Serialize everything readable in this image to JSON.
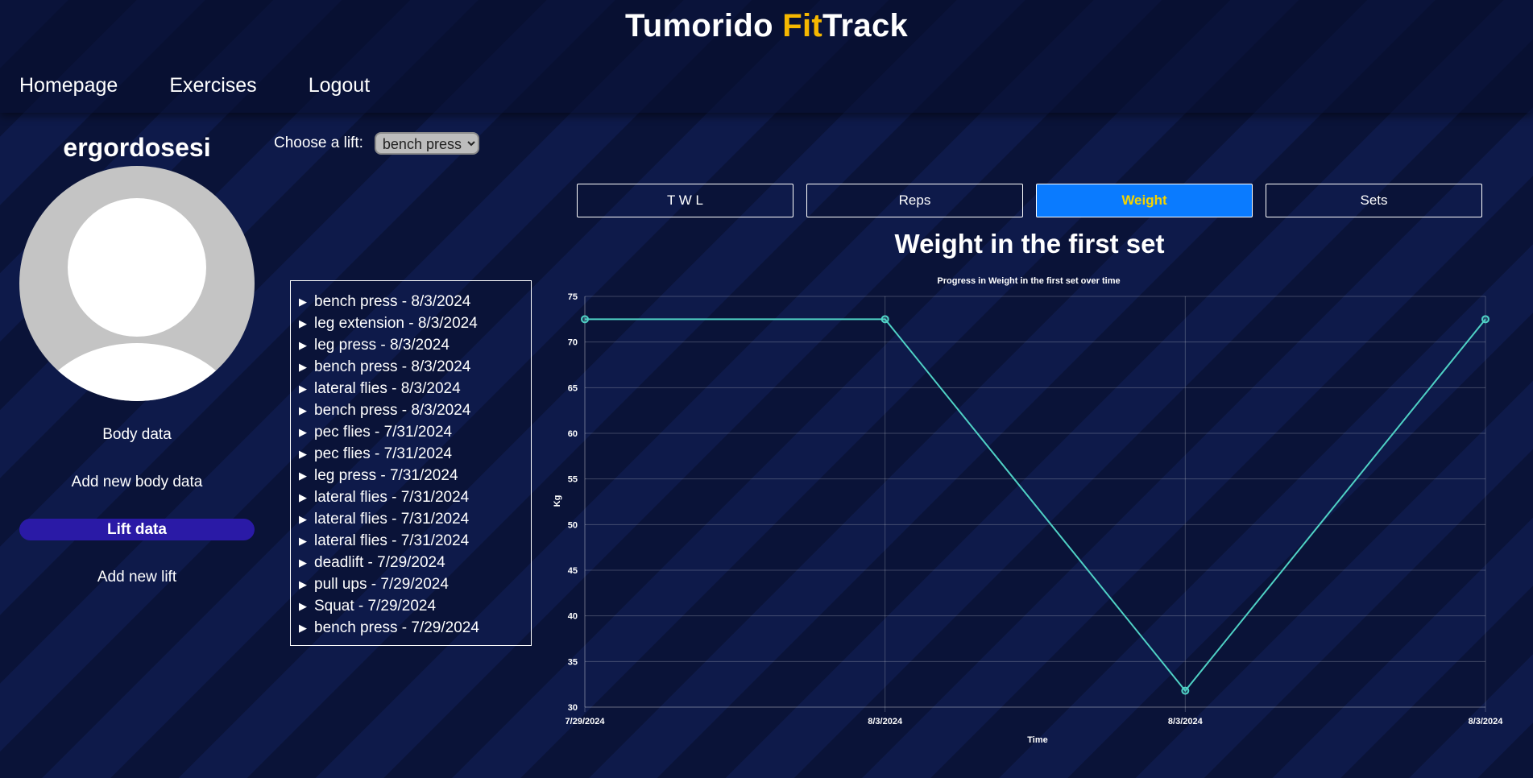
{
  "header": {
    "title_part1": "Tumorido ",
    "title_accent": "Fit",
    "title_part2": "Track",
    "accent_color": "#f5b700",
    "nav": [
      {
        "label": "Homepage"
      },
      {
        "label": "Exercises"
      },
      {
        "label": "Logout"
      }
    ]
  },
  "sidebar": {
    "username": "ergordosesi",
    "links": [
      {
        "label": "Body data"
      },
      {
        "label": "Add new body data"
      },
      {
        "label": "Lift data",
        "active": true
      },
      {
        "label": "Add new lift"
      }
    ]
  },
  "chooser": {
    "label": "Choose a lift:",
    "selected": "bench press"
  },
  "lifts": [
    "bench press - 8/3/2024",
    "leg extension - 8/3/2024",
    "leg press - 8/3/2024",
    "bench press - 8/3/2024",
    "lateral flies - 8/3/2024",
    "bench press - 8/3/2024",
    "pec flies - 7/31/2024",
    "pec flies - 7/31/2024",
    "leg press - 7/31/2024",
    "lateral flies - 7/31/2024",
    "lateral flies - 7/31/2024",
    "lateral flies - 7/31/2024",
    "deadlift - 7/29/2024",
    "pull ups - 7/29/2024",
    "Squat - 7/29/2024",
    "bench press - 7/29/2024"
  ],
  "tabs": [
    {
      "label": "T W L"
    },
    {
      "label": "Reps"
    },
    {
      "label": "Weight",
      "active": true
    },
    {
      "label": "Sets"
    }
  ],
  "active_tab_color": "#0a7bff",
  "main": {
    "chart_heading": "Weight in the first set"
  },
  "chart_data": {
    "type": "line",
    "title": "Progress in Weight in the first set over time",
    "xlabel": "Time",
    "ylabel": "Kg",
    "categories": [
      "7/29/2024",
      "8/3/2024",
      "8/3/2024",
      "8/3/2024"
    ],
    "values": [
      72.5,
      72.5,
      31.8,
      72.5
    ],
    "ylim": [
      30,
      75
    ],
    "yticks": [
      30,
      35,
      40,
      45,
      50,
      55,
      60,
      65,
      70,
      75
    ],
    "grid": true,
    "line_color": "#4fd1c5"
  }
}
